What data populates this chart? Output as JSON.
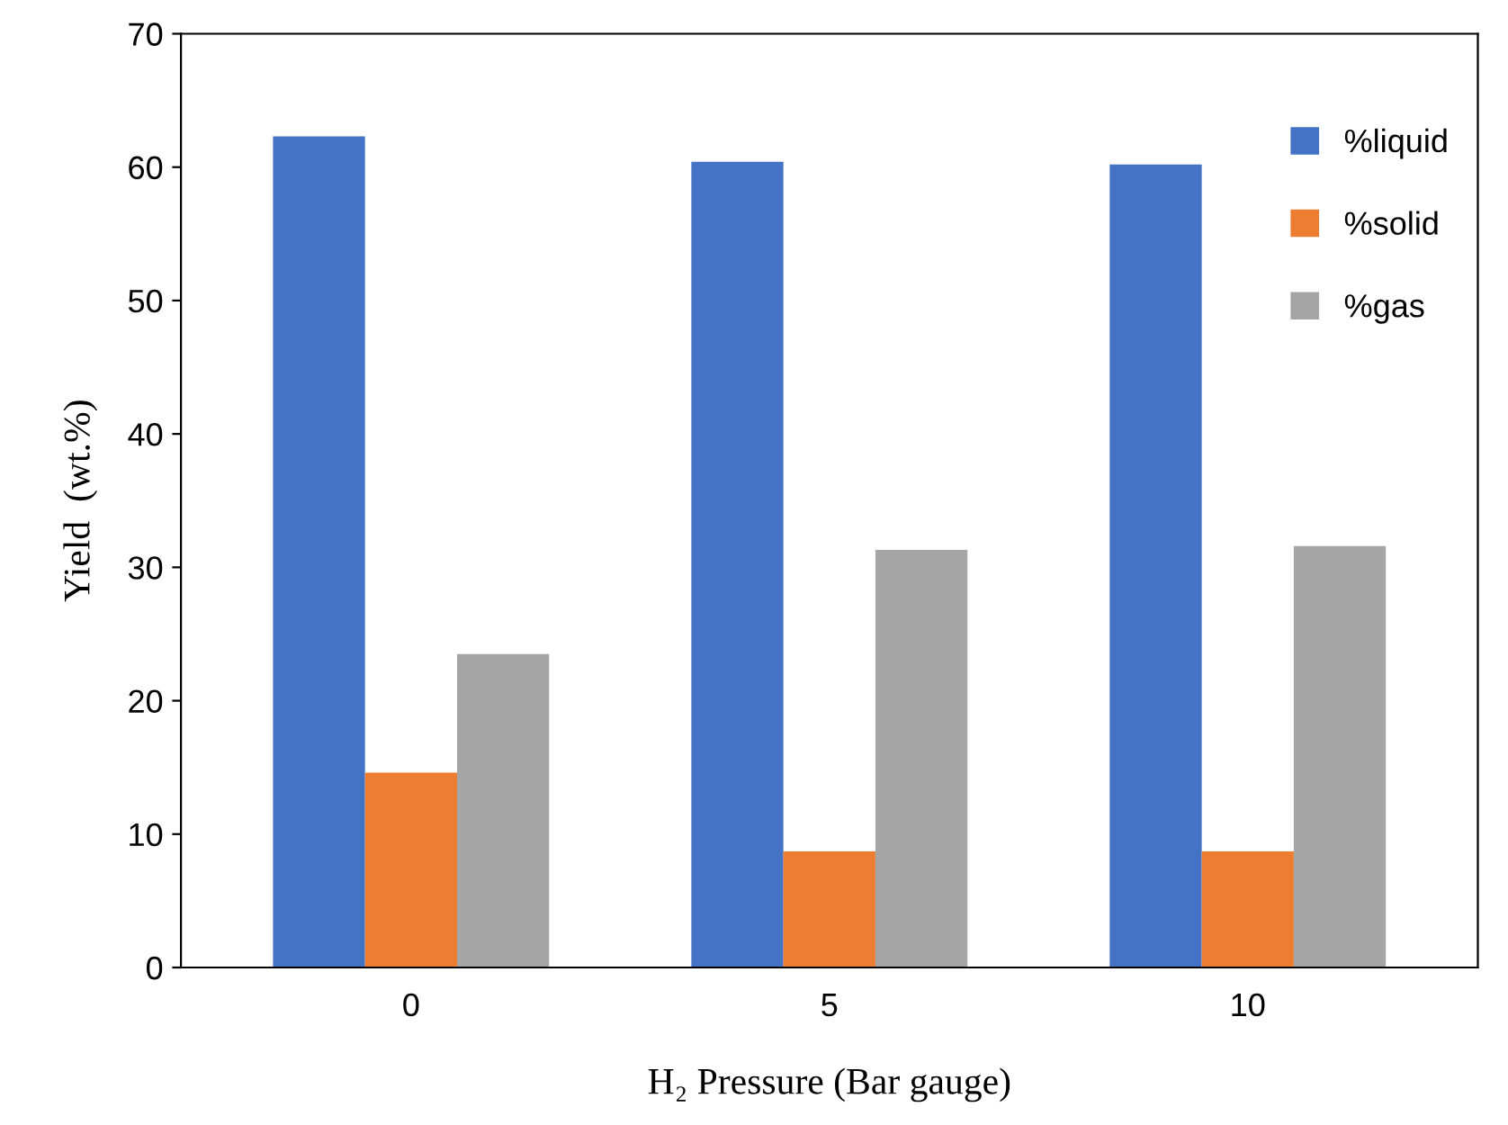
{
  "chart_data": {
    "type": "bar",
    "xlabel": "H₂ Pressure (Bar gauge)",
    "ylabel": "Yield  (wt.%)",
    "categories": [
      "0",
      "5",
      "10"
    ],
    "series": [
      {
        "name": "%liquid",
        "color": "#4472c4",
        "values": [
          62.3,
          60.4,
          60.2
        ]
      },
      {
        "name": "%solid",
        "color": "#ed7d31",
        "values": [
          14.6,
          8.7,
          8.7
        ]
      },
      {
        "name": "%gas",
        "color": "#a5a5a5",
        "values": [
          23.5,
          31.3,
          31.6
        ]
      }
    ],
    "ylim": [
      0,
      70
    ],
    "yticks": [
      0,
      10,
      20,
      30,
      40,
      50,
      60,
      70
    ],
    "grid": false,
    "legend": "top right"
  }
}
